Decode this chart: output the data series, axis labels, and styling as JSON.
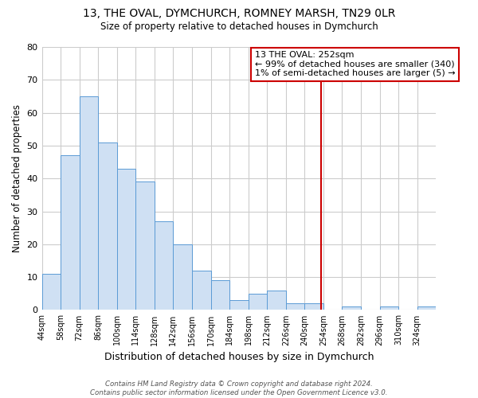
{
  "title1": "13, THE OVAL, DYMCHURCH, ROMNEY MARSH, TN29 0LR",
  "title2": "Size of property relative to detached houses in Dymchurch",
  "xlabel": "Distribution of detached houses by size in Dymchurch",
  "ylabel": "Number of detached properties",
  "bin_labels": [
    "44sqm",
    "58sqm",
    "72sqm",
    "86sqm",
    "100sqm",
    "114sqm",
    "128sqm",
    "142sqm",
    "156sqm",
    "170sqm",
    "184sqm",
    "198sqm",
    "212sqm",
    "226sqm",
    "240sqm",
    "254sqm",
    "268sqm",
    "282sqm",
    "296sqm",
    "310sqm",
    "324sqm"
  ],
  "bin_edges": [
    44,
    58,
    72,
    86,
    100,
    114,
    128,
    142,
    156,
    170,
    184,
    198,
    212,
    226,
    240,
    254,
    268,
    282,
    296,
    310,
    324,
    338
  ],
  "counts": [
    11,
    47,
    65,
    51,
    43,
    39,
    27,
    20,
    12,
    9,
    3,
    5,
    6,
    2,
    2,
    0,
    1,
    0,
    1,
    0,
    1
  ],
  "bar_color": "#cfe0f3",
  "bar_edge_color": "#5b9bd5",
  "property_size": 252,
  "vline_color": "#cc0000",
  "legend_title": "13 THE OVAL: 252sqm",
  "legend_line1": "← 99% of detached houses are smaller (340)",
  "legend_line2": "1% of semi-detached houses are larger (5) →",
  "legend_box_color": "#cc0000",
  "ylim": [
    0,
    80
  ],
  "yticks": [
    0,
    10,
    20,
    30,
    40,
    50,
    60,
    70,
    80
  ],
  "footer1": "Contains HM Land Registry data © Crown copyright and database right 2024.",
  "footer2": "Contains public sector information licensed under the Open Government Licence v3.0.",
  "fig_bg_color": "#ffffff",
  "plot_bg_color": "#ffffff",
  "grid_color": "#cccccc"
}
